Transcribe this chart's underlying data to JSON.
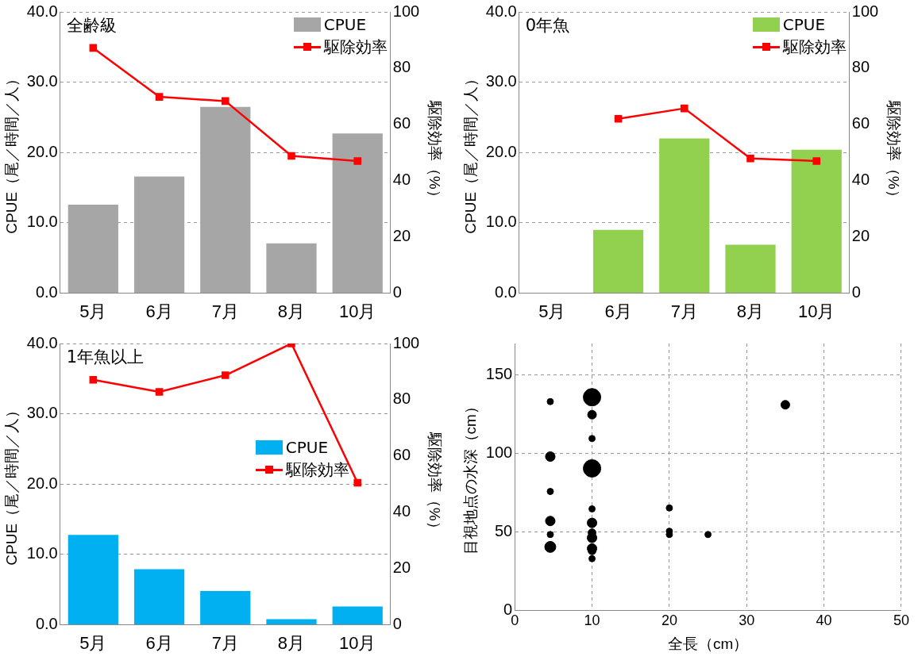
{
  "chart_data": [
    {
      "type": "bar",
      "categories": [
        "5月",
        "6月",
        "7月",
        "8月",
        "10月"
      ],
      "ylabel": "CPUE（尾／時間／人）",
      "y2label": "駆除効率（%）",
      "annotations": [
        "全齢級"
      ],
      "ylim": [
        0,
        40
      ],
      "yticks": [
        {
          "value": 0,
          "label": "0.0"
        },
        {
          "value": 10,
          "label": "10.0"
        },
        {
          "value": 20,
          "label": "20.0"
        },
        {
          "value": 30,
          "label": "30.0"
        },
        {
          "value": 40,
          "label": "40.0"
        }
      ],
      "y2lim": [
        0,
        100
      ],
      "y2ticks": [
        0,
        20,
        40,
        60,
        80,
        100
      ],
      "grid": "y",
      "legend": "top right",
      "marker": "square",
      "series": [
        {
          "name": "CPUE",
          "type": "bar",
          "color": "#a6a6a6",
          "values": [
            12.6,
            16.6,
            26.5,
            7.1,
            22.7
          ]
        },
        {
          "name": "駆除効率",
          "type": "line",
          "axis": "y2",
          "color": "#ff0000",
          "values": [
            87.2,
            69.8,
            68.3,
            48.8,
            47.0
          ]
        }
      ]
    },
    {
      "type": "bar",
      "categories": [
        "5月",
        "6月",
        "7月",
        "8月",
        "10月"
      ],
      "ylabel": "CPUE（尾／時間／人）",
      "y2label": "駆除効率（%）",
      "annotations": [
        "0年魚"
      ],
      "ylim": [
        0,
        40
      ],
      "yticks": [
        {
          "value": 0,
          "label": "0.0"
        },
        {
          "value": 10,
          "label": "10.0"
        },
        {
          "value": 20,
          "label": "20.0"
        },
        {
          "value": 30,
          "label": "30.0"
        },
        {
          "value": 40,
          "label": "40.0"
        }
      ],
      "y2lim": [
        0,
        100
      ],
      "y2ticks": [
        0,
        20,
        40,
        60,
        80,
        100
      ],
      "grid": "y",
      "legend": "top right",
      "marker": "square",
      "series": [
        {
          "name": "CPUE",
          "type": "bar",
          "color": "#92d050",
          "values": [
            null,
            9.0,
            22.0,
            6.9,
            20.4
          ]
        },
        {
          "name": "駆除効率",
          "type": "line",
          "axis": "y2",
          "color": "#ff0000",
          "values": [
            null,
            62.0,
            65.7,
            47.9,
            47.0
          ]
        }
      ]
    },
    {
      "type": "bar",
      "categories": [
        "5月",
        "6月",
        "7月",
        "8月",
        "10月"
      ],
      "ylabel": "CPUE（尾／時間／人）",
      "y2label": "駆除効率（%）",
      "annotations": [
        "1年魚以上"
      ],
      "ylim": [
        0,
        40
      ],
      "yticks": [
        {
          "value": 0,
          "label": "0.0"
        },
        {
          "value": 10,
          "label": "10.0"
        },
        {
          "value": 20,
          "label": "20.0"
        },
        {
          "value": 30,
          "label": "30.0"
        },
        {
          "value": 40,
          "label": "40.0"
        }
      ],
      "y2lim": [
        0,
        100
      ],
      "y2ticks": [
        0,
        20,
        40,
        60,
        80,
        100
      ],
      "grid": "y",
      "legend": "right",
      "marker": "square",
      "series": [
        {
          "name": "CPUE",
          "type": "bar",
          "color": "#00b0f0",
          "values": [
            12.8,
            7.9,
            4.8,
            0.8,
            2.6
          ]
        },
        {
          "name": "駆除効率",
          "type": "line",
          "axis": "y2",
          "color": "#ff0000",
          "values": [
            87.1,
            82.8,
            88.7,
            100,
            50.5
          ]
        }
      ]
    },
    {
      "type": "bubble",
      "xlabel": "全長（cm）",
      "ylabel": "目視地点の水深（cm）",
      "xlim": [
        0,
        50
      ],
      "xticks": [
        0,
        10,
        20,
        30,
        40,
        50
      ],
      "ylim": [
        0,
        170
      ],
      "yticks": [
        0,
        50,
        100,
        150
      ],
      "grid": true,
      "x": [
        4.6,
        4.6,
        4.6,
        4.6,
        4.6,
        4.6,
        10,
        10,
        10,
        10,
        10,
        10,
        10,
        10,
        10,
        10,
        10,
        20,
        20,
        20,
        25,
        35
      ],
      "series": [
        {
          "color": "#000000",
          "values": [
            133,
            98,
            75.8,
            57,
            48.4,
            40.5,
            135.8,
            124.7,
            109.5,
            90.5,
            64.7,
            55.8,
            49.5,
            46.3,
            39.5,
            38,
            33,
            65.3,
            50.5,
            48.4,
            48.4,
            131
          ],
          "sizes": [
            0.13,
            0.3,
            0.13,
            0.3,
            0.13,
            0.4,
            1,
            0.25,
            0.13,
            1,
            0.13,
            0.3,
            0.2,
            0.3,
            0.3,
            0.2,
            0.13,
            0.13,
            0.13,
            0.13,
            0.13,
            0.25
          ]
        }
      ]
    }
  ]
}
